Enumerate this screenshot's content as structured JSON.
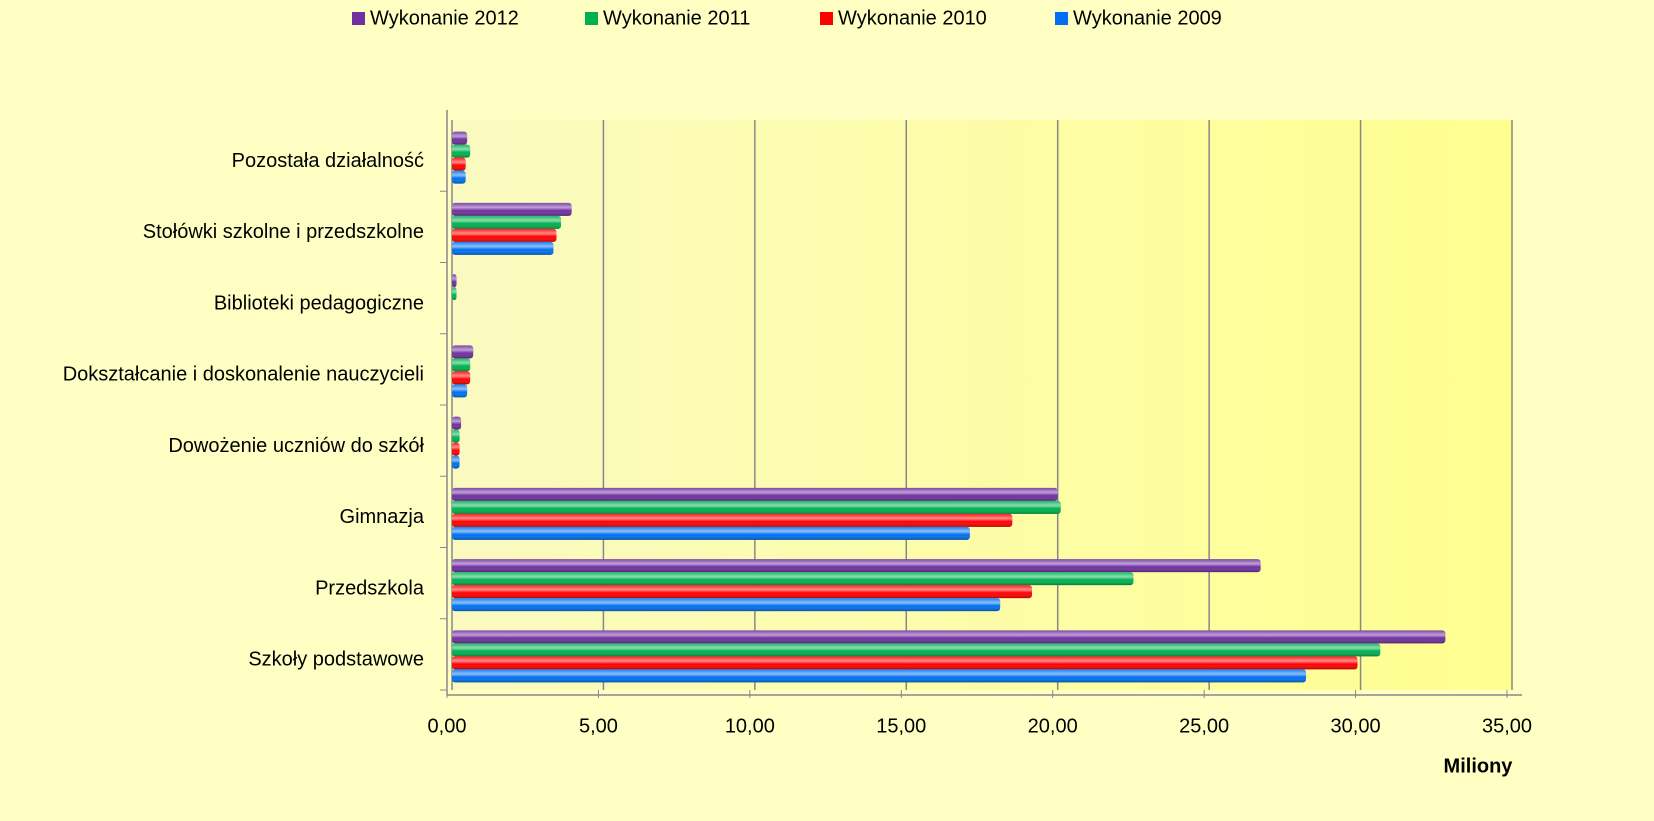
{
  "chart_data": {
    "type": "barh",
    "categories": [
      "Szkoły podstawowe",
      "Przedszkola",
      "Gimnazja",
      "Dowożenie uczniów do szkół",
      "Dokształcanie i doskonalenie nauczycieli",
      "Biblioteki pedagogiczne",
      "Stołówki szkolne i przedszkolne",
      "Pozostała działalność"
    ],
    "series": [
      {
        "name": "Wykonanie 2012",
        "color": "#7030a0",
        "values": [
          32.8,
          26.7,
          20.0,
          0.3,
          0.7,
          0.15,
          3.95,
          0.5
        ]
      },
      {
        "name": "Wykonanie 2011",
        "color": "#00b050",
        "values": [
          30.65,
          22.5,
          20.1,
          0.25,
          0.6,
          0.15,
          3.6,
          0.6
        ]
      },
      {
        "name": "Wykonanie 2010",
        "color": "#ff0000",
        "values": [
          29.9,
          19.15,
          18.5,
          0.25,
          0.6,
          0,
          3.45,
          0.45
        ]
      },
      {
        "name": "Wykonanie 2009",
        "color": "#0070f0",
        "values": [
          28.2,
          18.1,
          17.1,
          0.25,
          0.5,
          0,
          3.35,
          0.45
        ]
      }
    ],
    "xlim": [
      0,
      35
    ],
    "xticks": [
      {
        "value": 0,
        "label": "0,00"
      },
      {
        "value": 5,
        "label": "5,00"
      },
      {
        "value": 10,
        "label": "10,00"
      },
      {
        "value": 15,
        "label": "15,00"
      },
      {
        "value": 20,
        "label": "20,00"
      },
      {
        "value": 25,
        "label": "25,00"
      },
      {
        "value": 30,
        "label": "30,00"
      },
      {
        "value": 35,
        "label": "35,00"
      }
    ],
    "x_label": "Miliony",
    "grid": true
  }
}
